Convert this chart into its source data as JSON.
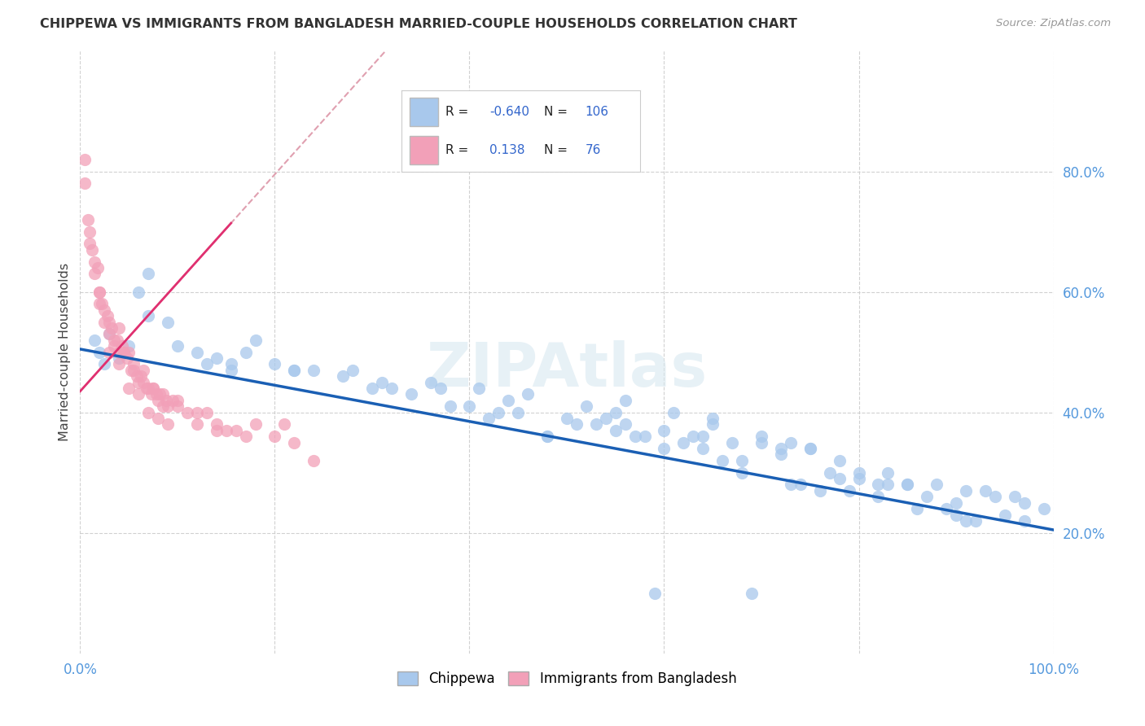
{
  "title": "CHIPPEWA VS IMMIGRANTS FROM BANGLADESH MARRIED-COUPLE HOUSEHOLDS CORRELATION CHART",
  "source": "Source: ZipAtlas.com",
  "ylabel": "Married-couple Households",
  "xlim": [
    0.0,
    1.0
  ],
  "ylim": [
    0.0,
    1.0
  ],
  "xticks": [
    0.0,
    0.2,
    0.4,
    0.6,
    0.8,
    1.0
  ],
  "xticklabels": [
    "0.0%",
    "",
    "",
    "",
    "",
    "100.0%"
  ],
  "ytick_positions": [
    0.2,
    0.4,
    0.6,
    0.8
  ],
  "yticklabels": [
    "20.0%",
    "40.0%",
    "60.0%",
    "80.0%"
  ],
  "legend_r_blue": "-0.640",
  "legend_n_blue": "106",
  "legend_r_pink": "0.138",
  "legend_n_pink": "76",
  "blue_color": "#a8c8ec",
  "pink_color": "#f2a0b8",
  "trendline_blue": "#1a5fb4",
  "trendline_pink_solid": "#e03070",
  "trendline_pink_dashed": "#e0a0b0",
  "watermark": "ZIPAtlas",
  "blue_r": -0.64,
  "pink_r": 0.138,
  "blue_intercept": 0.505,
  "blue_slope": -0.3,
  "pink_intercept": 0.435,
  "pink_slope": 1.8,
  "chippewa_x": [
    0.02,
    0.015,
    0.025,
    0.04,
    0.05,
    0.03,
    0.06,
    0.07,
    0.09,
    0.1,
    0.12,
    0.13,
    0.155,
    0.17,
    0.2,
    0.22,
    0.24,
    0.27,
    0.3,
    0.32,
    0.34,
    0.36,
    0.37,
    0.38,
    0.4,
    0.41,
    0.42,
    0.44,
    0.45,
    0.46,
    0.48,
    0.5,
    0.51,
    0.52,
    0.54,
    0.55,
    0.56,
    0.58,
    0.6,
    0.61,
    0.62,
    0.64,
    0.65,
    0.67,
    0.68,
    0.7,
    0.72,
    0.73,
    0.75,
    0.77,
    0.78,
    0.8,
    0.82,
    0.83,
    0.85,
    0.87,
    0.88,
    0.9,
    0.91,
    0.93,
    0.94,
    0.96,
    0.97,
    0.99,
    0.14,
    0.155,
    0.07,
    0.28,
    0.31,
    0.22,
    0.18,
    0.43,
    0.48,
    0.53,
    0.57,
    0.63,
    0.7,
    0.75,
    0.8,
    0.85,
    0.9,
    0.65,
    0.72,
    0.78,
    0.83,
    0.89,
    0.95,
    0.6,
    0.68,
    0.74,
    0.79,
    0.86,
    0.92,
    0.97,
    0.56,
    0.66,
    0.76,
    0.55,
    0.64,
    0.73,
    0.82,
    0.91,
    0.59,
    0.69
  ],
  "chippewa_y": [
    0.5,
    0.52,
    0.48,
    0.49,
    0.51,
    0.53,
    0.6,
    0.56,
    0.55,
    0.51,
    0.5,
    0.48,
    0.48,
    0.5,
    0.48,
    0.47,
    0.47,
    0.46,
    0.44,
    0.44,
    0.43,
    0.45,
    0.44,
    0.41,
    0.41,
    0.44,
    0.39,
    0.42,
    0.4,
    0.43,
    0.36,
    0.39,
    0.38,
    0.41,
    0.39,
    0.37,
    0.42,
    0.36,
    0.37,
    0.4,
    0.35,
    0.36,
    0.39,
    0.35,
    0.32,
    0.36,
    0.33,
    0.35,
    0.34,
    0.3,
    0.32,
    0.29,
    0.28,
    0.3,
    0.28,
    0.26,
    0.28,
    0.25,
    0.27,
    0.27,
    0.26,
    0.26,
    0.25,
    0.24,
    0.49,
    0.47,
    0.63,
    0.47,
    0.45,
    0.47,
    0.52,
    0.4,
    0.36,
    0.38,
    0.36,
    0.36,
    0.35,
    0.34,
    0.3,
    0.28,
    0.23,
    0.38,
    0.34,
    0.29,
    0.28,
    0.24,
    0.23,
    0.34,
    0.3,
    0.28,
    0.27,
    0.24,
    0.22,
    0.22,
    0.38,
    0.32,
    0.27,
    0.4,
    0.34,
    0.28,
    0.26,
    0.22,
    0.1,
    0.1
  ],
  "bangladesh_x": [
    0.005,
    0.008,
    0.01,
    0.012,
    0.015,
    0.018,
    0.02,
    0.022,
    0.025,
    0.028,
    0.03,
    0.032,
    0.035,
    0.038,
    0.04,
    0.043,
    0.045,
    0.048,
    0.05,
    0.052,
    0.055,
    0.058,
    0.06,
    0.062,
    0.065,
    0.068,
    0.07,
    0.073,
    0.075,
    0.078,
    0.08,
    0.082,
    0.085,
    0.088,
    0.09,
    0.1,
    0.11,
    0.12,
    0.13,
    0.14,
    0.15,
    0.16,
    0.18,
    0.2,
    0.22,
    0.24,
    0.02,
    0.03,
    0.04,
    0.015,
    0.025,
    0.035,
    0.045,
    0.055,
    0.065,
    0.075,
    0.085,
    0.095,
    0.1,
    0.12,
    0.14,
    0.17,
    0.21,
    0.005,
    0.01,
    0.02,
    0.03,
    0.04,
    0.05,
    0.06,
    0.07,
    0.08,
    0.09
  ],
  "bangladesh_y": [
    0.82,
    0.72,
    0.68,
    0.67,
    0.65,
    0.64,
    0.6,
    0.58,
    0.57,
    0.56,
    0.55,
    0.54,
    0.52,
    0.52,
    0.5,
    0.51,
    0.5,
    0.49,
    0.5,
    0.47,
    0.47,
    0.46,
    0.45,
    0.46,
    0.45,
    0.44,
    0.44,
    0.43,
    0.44,
    0.43,
    0.42,
    0.43,
    0.41,
    0.42,
    0.41,
    0.42,
    0.4,
    0.4,
    0.4,
    0.38,
    0.37,
    0.37,
    0.38,
    0.36,
    0.35,
    0.32,
    0.58,
    0.53,
    0.54,
    0.63,
    0.55,
    0.51,
    0.5,
    0.48,
    0.47,
    0.44,
    0.43,
    0.42,
    0.41,
    0.38,
    0.37,
    0.36,
    0.38,
    0.78,
    0.7,
    0.6,
    0.5,
    0.48,
    0.44,
    0.43,
    0.4,
    0.39,
    0.38
  ]
}
